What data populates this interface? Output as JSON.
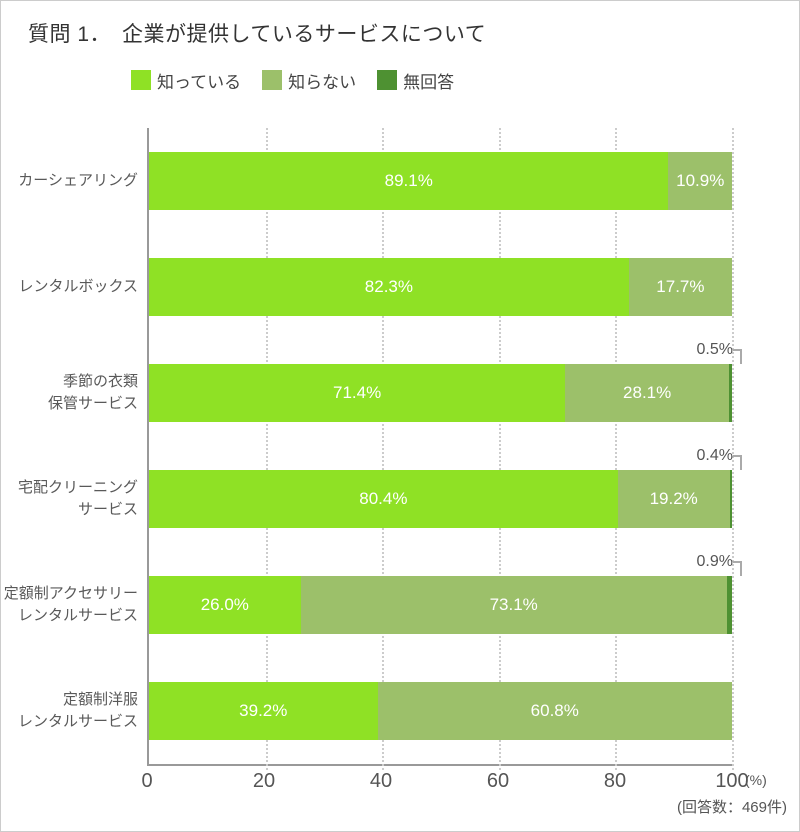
{
  "chart_data": {
    "type": "bar",
    "stacked": true,
    "orientation": "horizontal",
    "title": "質問 1．　企業が提供しているサービスについて",
    "legend_position": "top",
    "grid": "vertical-dotted",
    "xlim": [
      0,
      100
    ],
    "x_ticks": [
      "0",
      "20",
      "40",
      "60",
      "80",
      "100"
    ],
    "x_unit": "(%)",
    "note": "(回答数：469件)",
    "colors": [
      "#8FE125",
      "#9CC06A",
      "#4E9132"
    ],
    "categories": [
      "カーシェアリング",
      "レンタルボックス",
      "季節の衣類保管サービス",
      "宅配クリーニングサービス",
      "定額制アクセサリーレンタルサービス",
      "定額制洋服レンタルサービス"
    ],
    "category_lines": [
      [
        "カーシェアリング"
      ],
      [
        "レンタルボックス"
      ],
      [
        "季節の衣類",
        "保管サービス"
      ],
      [
        "宅配クリーニング",
        "サービス"
      ],
      [
        "定額制アクセサリー",
        "レンタルサービス"
      ],
      [
        "定額制洋服",
        "レンタルサービス"
      ]
    ],
    "series": [
      {
        "name": "知っている",
        "values": [
          89.1,
          82.3,
          71.4,
          80.4,
          26.0,
          39.2
        ]
      },
      {
        "name": "知らない",
        "values": [
          10.9,
          17.7,
          28.1,
          19.2,
          73.1,
          60.8
        ]
      },
      {
        "name": "無回答",
        "values": [
          0,
          0,
          0.5,
          0.4,
          0.9,
          0
        ]
      }
    ],
    "bar_labels": [
      [
        "89.1%",
        "10.9%",
        ""
      ],
      [
        "82.3%",
        "17.7%",
        ""
      ],
      [
        "71.4%",
        "28.1%",
        "0.5%"
      ],
      [
        "80.4%",
        "19.2%",
        "0.4%"
      ],
      [
        "26.0%",
        "73.1%",
        "0.9%"
      ],
      [
        "39.2%",
        "60.8%",
        ""
      ]
    ]
  }
}
